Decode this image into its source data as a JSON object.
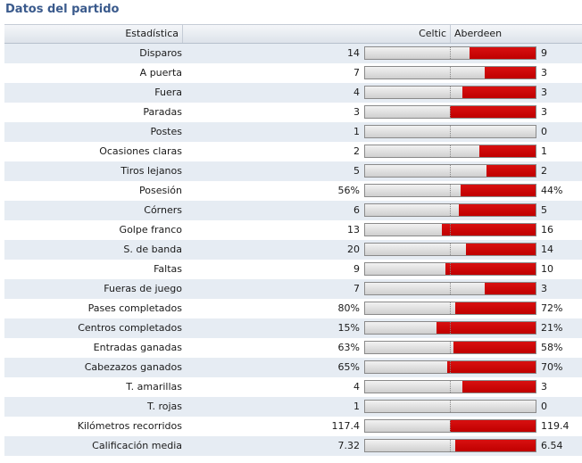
{
  "title": "Datos del partido",
  "header": {
    "stat": "Estadística",
    "home": "Celtic",
    "away": "Aberdeen"
  },
  "colors": {
    "away_bar": "#c00000",
    "home_bar": "#dcdcdc",
    "title": "#3a5a8c"
  },
  "stats": [
    {
      "label": "Disparos",
      "home": "14",
      "away": "9",
      "home_share": 0.61
    },
    {
      "label": "A puerta",
      "home": "7",
      "away": "3",
      "home_share": 0.7
    },
    {
      "label": "Fuera",
      "home": "4",
      "away": "3",
      "home_share": 0.57
    },
    {
      "label": "Paradas",
      "home": "3",
      "away": "3",
      "home_share": 0.5
    },
    {
      "label": "Postes",
      "home": "1",
      "away": "0",
      "home_share": 1.0
    },
    {
      "label": "Ocasiones claras",
      "home": "2",
      "away": "1",
      "home_share": 0.67
    },
    {
      "label": "Tiros lejanos",
      "home": "5",
      "away": "2",
      "home_share": 0.71
    },
    {
      "label": "Posesión",
      "home": "56%",
      "away": "44%",
      "home_share": 0.56
    },
    {
      "label": "Córners",
      "home": "6",
      "away": "5",
      "home_share": 0.55
    },
    {
      "label": "Golpe franco",
      "home": "13",
      "away": "16",
      "home_share": 0.45
    },
    {
      "label": "S. de banda",
      "home": "20",
      "away": "14",
      "home_share": 0.59
    },
    {
      "label": "Faltas",
      "home": "9",
      "away": "10",
      "home_share": 0.47
    },
    {
      "label": "Fueras de juego",
      "home": "7",
      "away": "3",
      "home_share": 0.7
    },
    {
      "label": "Pases completados",
      "home": "80%",
      "away": "72%",
      "home_share": 0.53
    },
    {
      "label": "Centros completados",
      "home": "15%",
      "away": "21%",
      "home_share": 0.42
    },
    {
      "label": "Entradas ganadas",
      "home": "63%",
      "away": "58%",
      "home_share": 0.52
    },
    {
      "label": "Cabezazos ganados",
      "home": "65%",
      "away": "70%",
      "home_share": 0.48
    },
    {
      "label": "T. amarillas",
      "home": "4",
      "away": "3",
      "home_share": 0.57
    },
    {
      "label": "T. rojas",
      "home": "1",
      "away": "0",
      "home_share": 1.0
    },
    {
      "label": "Kilómetros recorridos",
      "home": "117.4",
      "away": "119.4",
      "home_share": 0.5
    },
    {
      "label": "Calificación media",
      "home": "7.32",
      "away": "6.54",
      "home_share": 0.53
    }
  ]
}
